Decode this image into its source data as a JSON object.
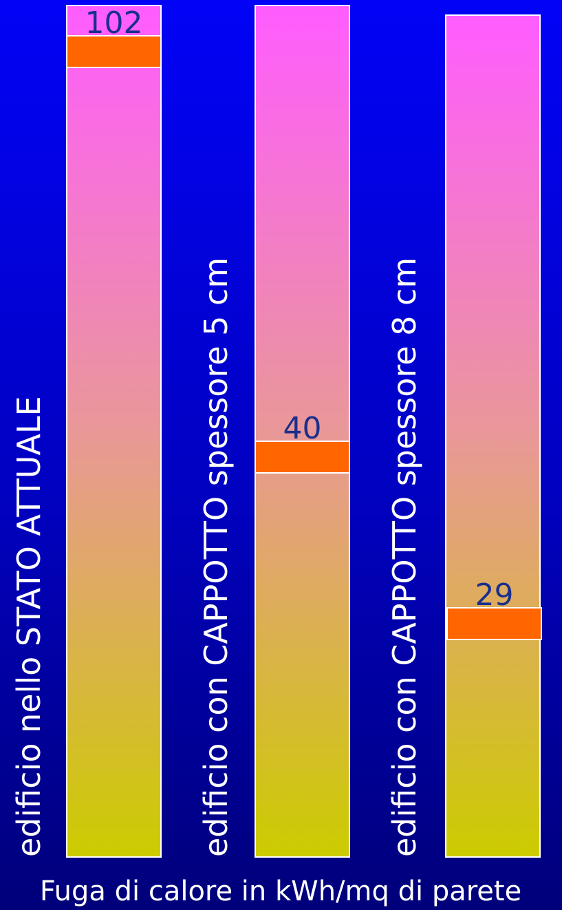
{
  "chart_data": {
    "type": "bar",
    "categories": [
      "edificio nello STATO ATTUALE",
      "edificio con CAPPOTTO spessore 5 cm",
      "edificio con CAPPOTTO spessore 8 cm"
    ],
    "values": [
      102,
      40,
      29
    ],
    "value_labels": [
      "102",
      "40",
      "29"
    ],
    "xlabel": "Fuga di calore in kWh/mq di parete",
    "colors": {
      "bar_top": "#ff5cff",
      "bar_bottom": "#cccc00",
      "marker": "#ff6600",
      "bar_border": "#ffffff",
      "value_text": "#1a2f8c",
      "label_text": "#ffffff"
    }
  }
}
